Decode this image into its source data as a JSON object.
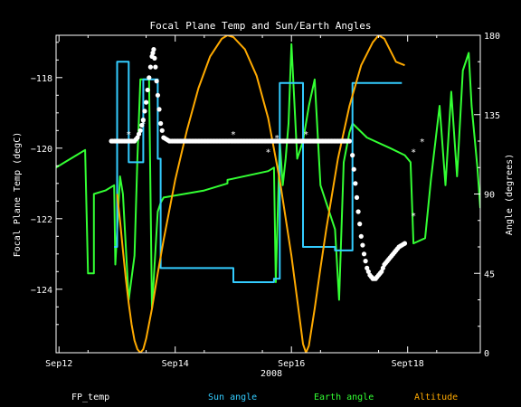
{
  "chart_data": {
    "type": "line",
    "title": "Focal Plane Temp and Sun/Earth Angles",
    "xlabel": "2008",
    "ylabel_left": "Focal Plane Temp (degC)",
    "ylabel_right": "Angle (degrees)",
    "x_ticks": [
      {
        "x": 12,
        "label": "Sep12"
      },
      {
        "x": 14,
        "label": "Sep14"
      },
      {
        "x": 16,
        "label": "Sep16"
      },
      {
        "x": 18,
        "label": "Sept18"
      }
    ],
    "left_ticks": [
      {
        "v": -118,
        "label": "−118"
      },
      {
        "v": -120,
        "label": "−120"
      },
      {
        "v": -122,
        "label": "−122"
      },
      {
        "v": -124,
        "label": "−124"
      }
    ],
    "right_ticks": [
      {
        "v": 180,
        "label": "180"
      },
      {
        "v": 135,
        "label": "135"
      },
      {
        "v": 90,
        "label": "90"
      },
      {
        "v": 45,
        "label": "45"
      },
      {
        "v": 0,
        "label": "0"
      }
    ],
    "xlim": [
      11.95,
      19.25
    ],
    "ylim_left": [
      -125.8,
      -116.8
    ],
    "ylim_right": [
      0,
      180
    ],
    "grid": false,
    "series": [
      {
        "name": "FP_temp",
        "color": "#ffffff",
        "axis": "left",
        "style": "markers",
        "segments": [
          [
            [
              12.9,
              -119.8
            ],
            [
              13.0,
              -119.8
            ],
            [
              13.1,
              -119.8
            ],
            [
              13.2,
              -119.8
            ],
            [
              13.3,
              -119.8
            ],
            [
              13.35,
              -119.7
            ],
            [
              13.4,
              -119.5
            ],
            [
              13.45,
              -119.2
            ],
            [
              13.5,
              -118.7
            ],
            [
              13.55,
              -118.0
            ],
            [
              13.6,
              -117.4
            ],
            [
              13.63,
              -117.2
            ],
            [
              13.66,
              -117.7
            ],
            [
              13.7,
              -118.5
            ],
            [
              13.75,
              -119.3
            ],
            [
              13.8,
              -119.7
            ],
            [
              13.9,
              -119.8
            ],
            [
              14.0,
              -119.8
            ],
            [
              14.2,
              -119.8
            ],
            [
              14.4,
              -119.8
            ],
            [
              14.6,
              -119.8
            ],
            [
              14.8,
              -119.8
            ],
            [
              15.0,
              -119.8
            ],
            [
              15.2,
              -119.8
            ],
            [
              15.4,
              -119.8
            ],
            [
              15.6,
              -119.8
            ],
            [
              15.8,
              -119.8
            ],
            [
              16.0,
              -119.8
            ],
            [
              16.2,
              -119.8
            ],
            [
              16.4,
              -119.8
            ],
            [
              16.6,
              -119.8
            ],
            [
              16.8,
              -119.8
            ],
            [
              17.0,
              -119.8
            ]
          ],
          [
            [
              17.05,
              -120.2
            ],
            [
              17.1,
              -121.0
            ],
            [
              17.15,
              -121.8
            ],
            [
              17.2,
              -122.5
            ],
            [
              17.25,
              -123.0
            ],
            [
              17.3,
              -123.4
            ],
            [
              17.35,
              -123.6
            ],
            [
              17.4,
              -123.7
            ],
            [
              17.45,
              -123.7
            ],
            [
              17.5,
              -123.6
            ],
            [
              17.55,
              -123.5
            ],
            [
              17.6,
              -123.3
            ],
            [
              17.65,
              -123.2
            ],
            [
              17.7,
              -123.1
            ],
            [
              17.75,
              -123.0
            ],
            [
              17.8,
              -122.9
            ],
            [
              17.85,
              -122.8
            ],
            [
              17.9,
              -122.75
            ],
            [
              17.95,
              -122.7
            ]
          ]
        ],
        "outliers": [
          [
            13.2,
            -119.6
          ],
          [
            13.45,
            -119.3
          ],
          [
            15.0,
            -119.6
          ],
          [
            15.6,
            -120.1
          ],
          [
            15.75,
            -119.7
          ],
          [
            16.25,
            -119.6
          ],
          [
            18.1,
            -120.1
          ],
          [
            18.1,
            -121.9
          ],
          [
            18.25,
            -119.8
          ]
        ]
      },
      {
        "name": "Sun angle",
        "color": "#33ccff",
        "axis": "right",
        "segments": [
          [
            [
              12.95,
              60
            ],
            [
              13.0,
              60
            ],
            [
              13.0,
              165
            ],
            [
              13.2,
              165
            ],
            [
              13.2,
              108
            ],
            [
              13.45,
              108
            ],
            [
              13.45,
              155
            ],
            [
              13.7,
              155
            ],
            [
              13.7,
              110
            ],
            [
              13.75,
              110
            ],
            [
              13.75,
              48
            ],
            [
              15.0,
              48
            ],
            [
              15.0,
              40
            ],
            [
              15.7,
              40
            ],
            [
              15.7,
              42
            ],
            [
              15.8,
              42
            ],
            [
              15.8,
              153
            ],
            [
              16.2,
              153
            ],
            [
              16.2,
              60
            ],
            [
              16.75,
              60
            ],
            [
              16.75,
              58
            ],
            [
              17.05,
              58
            ],
            [
              17.05,
              153
            ],
            [
              17.9,
              153
            ]
          ]
        ]
      },
      {
        "name": "Earth angle",
        "color": "#33ff33",
        "axis": "right",
        "segments": [
          [
            [
              11.95,
              105
            ],
            [
              12.1,
              108
            ],
            [
              12.3,
              112
            ],
            [
              12.45,
              115
            ],
            [
              12.5,
              45
            ],
            [
              12.6,
              45
            ],
            [
              12.6,
              90
            ],
            [
              12.8,
              92
            ],
            [
              12.95,
              95
            ],
            [
              12.97,
              50
            ],
            [
              13.05,
              100
            ],
            [
              13.1,
              90
            ],
            [
              13.2,
              30
            ],
            [
              13.3,
              55
            ],
            [
              13.35,
              110
            ],
            [
              13.4,
              155
            ],
            [
              13.55,
              155
            ],
            [
              13.6,
              25
            ],
            [
              13.7,
              80
            ],
            [
              13.75,
              85
            ],
            [
              13.8,
              88
            ],
            [
              14.5,
              92
            ],
            [
              14.9,
              96
            ],
            [
              14.9,
              98
            ],
            [
              15.6,
              103
            ],
            [
              15.7,
              105
            ],
            [
              15.73,
              40
            ],
            [
              15.8,
              120
            ],
            [
              15.85,
              95
            ],
            [
              15.9,
              110
            ],
            [
              15.95,
              130
            ],
            [
              16.0,
              175
            ],
            [
              16.1,
              110
            ],
            [
              16.2,
              120
            ],
            [
              16.3,
              140
            ],
            [
              16.4,
              155
            ],
            [
              16.5,
              95
            ],
            [
              16.75,
              70
            ],
            [
              16.82,
              30
            ],
            [
              16.9,
              108
            ],
            [
              17.0,
              125
            ],
            [
              17.05,
              130
            ],
            [
              17.3,
              122
            ],
            [
              17.7,
              116
            ],
            [
              17.95,
              112
            ],
            [
              18.05,
              108
            ],
            [
              18.1,
              62
            ],
            [
              18.3,
              65
            ],
            [
              18.4,
              98
            ],
            [
              18.55,
              140
            ],
            [
              18.65,
              95
            ],
            [
              18.75,
              148
            ],
            [
              18.85,
              100
            ],
            [
              18.95,
              160
            ],
            [
              19.05,
              170
            ],
            [
              19.1,
              140
            ],
            [
              19.2,
              105
            ],
            [
              19.25,
              82
            ]
          ]
        ]
      },
      {
        "name": "Altitude",
        "color": "#ffaa00",
        "axis": "right",
        "segments": [
          [
            [
              13.0,
              90
            ],
            [
              13.05,
              75
            ],
            [
              13.1,
              58
            ],
            [
              13.15,
              42
            ],
            [
              13.2,
              28
            ],
            [
              13.25,
              16
            ],
            [
              13.3,
              7
            ],
            [
              13.35,
              2
            ],
            [
              13.4,
              0
            ],
            [
              13.45,
              2
            ],
            [
              13.5,
              8
            ],
            [
              13.6,
              25
            ],
            [
              13.7,
              45
            ],
            [
              13.8,
              64
            ],
            [
              14.0,
              98
            ],
            [
              14.2,
              126
            ],
            [
              14.4,
              150
            ],
            [
              14.6,
              168
            ],
            [
              14.8,
              178
            ],
            [
              14.9,
              180
            ],
            [
              15.0,
              179
            ],
            [
              15.2,
              172
            ],
            [
              15.4,
              157
            ],
            [
              15.6,
              133
            ],
            [
              15.8,
              98
            ],
            [
              16.0,
              55
            ],
            [
              16.1,
              30
            ],
            [
              16.2,
              5
            ],
            [
              16.25,
              0
            ],
            [
              16.3,
              4
            ],
            [
              16.4,
              25
            ],
            [
              16.5,
              48
            ],
            [
              16.6,
              70
            ],
            [
              16.8,
              110
            ],
            [
              17.0,
              140
            ],
            [
              17.2,
              163
            ],
            [
              17.4,
              176
            ],
            [
              17.5,
              180
            ],
            [
              17.6,
              178
            ],
            [
              17.8,
              165
            ],
            [
              17.95,
              163
            ]
          ]
        ]
      }
    ]
  }
}
